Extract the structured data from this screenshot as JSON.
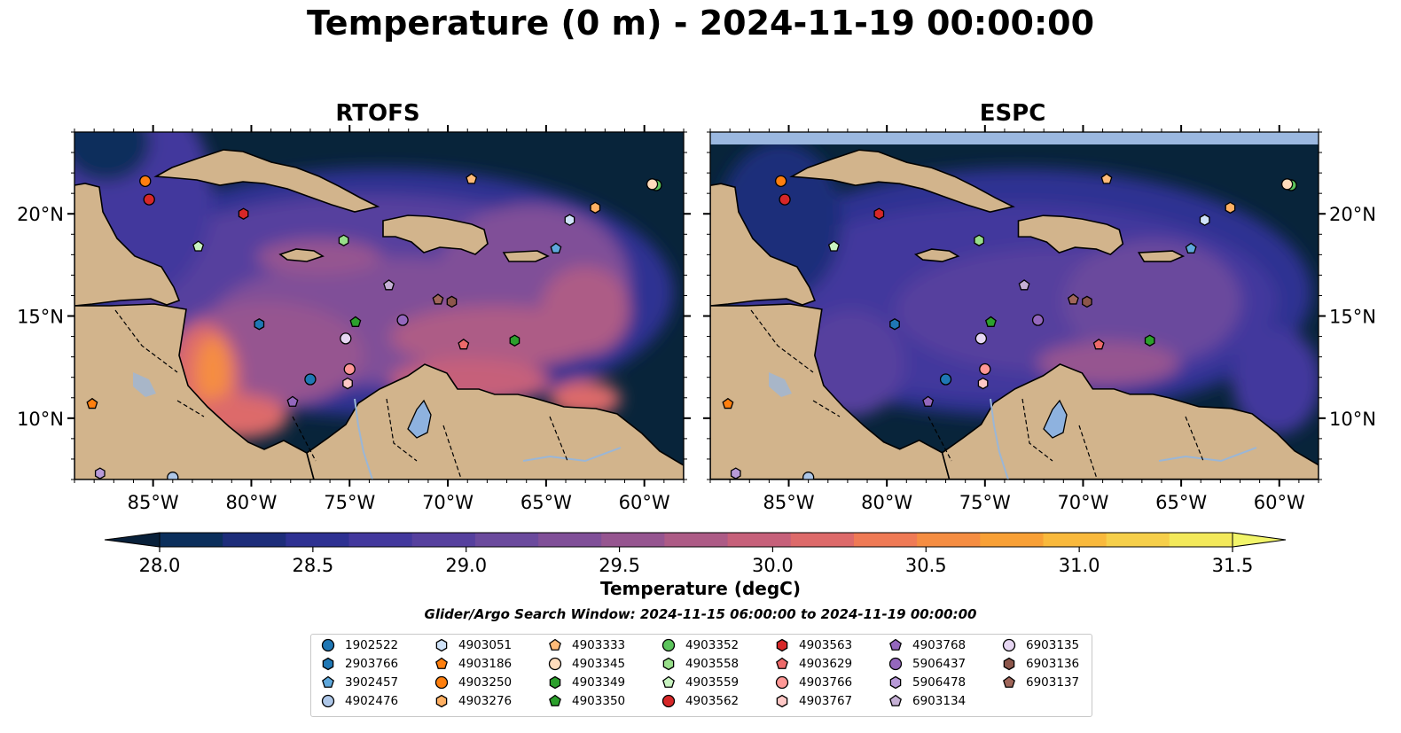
{
  "title": "Temperature (0 m) - 2024-11-19 00:00:00",
  "panels": [
    {
      "title": "RTOFS"
    },
    {
      "title": "ESPC"
    }
  ],
  "x_ticks": [
    "85°W",
    "80°W",
    "75°W",
    "70°W",
    "65°W",
    "60°W"
  ],
  "x_tick_values": [
    -85,
    -80,
    -75,
    -70,
    -65,
    -60
  ],
  "y_ticks": [
    "20°N",
    "15°N",
    "10°N"
  ],
  "y_tick_values": [
    20,
    15,
    10
  ],
  "map_extent": {
    "lon": [
      -89,
      -58
    ],
    "lat": [
      7,
      24
    ]
  },
  "colorbar": {
    "label": "Temperature (degC)",
    "ticks": [
      "28.0",
      "28.5",
      "29.0",
      "29.5",
      "30.0",
      "30.5",
      "31.0",
      "31.5"
    ],
    "range": [
      28.0,
      31.5
    ],
    "extend": "both",
    "colors": [
      "#0b2f5c",
      "#1d2d7a",
      "#2e3192",
      "#43389d",
      "#56409e",
      "#6b4a9d",
      "#804f98",
      "#965590",
      "#ad5b86",
      "#c6607a",
      "#dd6a6a",
      "#ef7a55",
      "#f58d42",
      "#f8a036",
      "#f9b93c",
      "#f6cf4a",
      "#f3e95a"
    ],
    "under_color": "#08203a",
    "over_color": "#f2f56a"
  },
  "colors": {
    "ocean_deep": "#08243a",
    "land": "#d2b48c",
    "lake": "#8eb2df",
    "river": "#9ab6d6"
  },
  "search_window": "Glider/Argo Search Window: 2024-11-15 06:00:00 to 2024-11-19 00:00:00",
  "legend": [
    {
      "id": "1902522",
      "marker": "circle",
      "color": "#1f77b4"
    },
    {
      "id": "2903766",
      "marker": "hexagon",
      "color": "#1f77b4"
    },
    {
      "id": "3902457",
      "marker": "pentagon",
      "color": "#5fa8dc"
    },
    {
      "id": "4902476",
      "marker": "circle",
      "color": "#aec7e8"
    },
    {
      "id": "4903051",
      "marker": "hexagon",
      "color": "#cfe2f8"
    },
    {
      "id": "4903186",
      "marker": "pentagon",
      "color": "#ff7f0e"
    },
    {
      "id": "4903250",
      "marker": "circle",
      "color": "#ff7f0e"
    },
    {
      "id": "4903276",
      "marker": "hexagon",
      "color": "#ffb063"
    },
    {
      "id": "4903333",
      "marker": "pentagon",
      "color": "#ffbb78"
    },
    {
      "id": "4903345",
      "marker": "circle",
      "color": "#ffdcbc"
    },
    {
      "id": "4903349",
      "marker": "hexagon",
      "color": "#2ca02c"
    },
    {
      "id": "4903350",
      "marker": "pentagon",
      "color": "#2ca02c"
    },
    {
      "id": "4903352",
      "marker": "circle",
      "color": "#5cc45c"
    },
    {
      "id": "4903558",
      "marker": "hexagon",
      "color": "#98df8a"
    },
    {
      "id": "4903559",
      "marker": "pentagon",
      "color": "#c8f3c0"
    },
    {
      "id": "4903562",
      "marker": "circle",
      "color": "#d62728"
    },
    {
      "id": "4903563",
      "marker": "hexagon",
      "color": "#d62728"
    },
    {
      "id": "4903629",
      "marker": "pentagon",
      "color": "#ee6a6a"
    },
    {
      "id": "4903766",
      "marker": "circle",
      "color": "#ff9896"
    },
    {
      "id": "4903767",
      "marker": "hexagon",
      "color": "#ffc8c6"
    },
    {
      "id": "4903768",
      "marker": "pentagon",
      "color": "#9467bd"
    },
    {
      "id": "5906437",
      "marker": "circle",
      "color": "#9467bd"
    },
    {
      "id": "5906478",
      "marker": "hexagon",
      "color": "#b89ad8"
    },
    {
      "id": "6903134",
      "marker": "pentagon",
      "color": "#c5b0d5"
    },
    {
      "id": "6903135",
      "marker": "circle",
      "color": "#e6d6f2"
    },
    {
      "id": "6903136",
      "marker": "hexagon",
      "color": "#8c564b"
    },
    {
      "id": "6903137",
      "marker": "pentagon",
      "color": "#a0665a"
    }
  ],
  "observations": [
    {
      "id": "4903250",
      "lon": -85.4,
      "lat": 21.6
    },
    {
      "id": "4903562",
      "lon": -85.2,
      "lat": 20.7
    },
    {
      "id": "4903563",
      "lon": -80.4,
      "lat": 20.0
    },
    {
      "id": "4903559",
      "lon": -82.7,
      "lat": 18.4
    },
    {
      "id": "4903558",
      "lon": -75.3,
      "lat": 18.7
    },
    {
      "id": "4903333",
      "lon": -68.8,
      "lat": 21.7
    },
    {
      "id": "4903276",
      "lon": -62.5,
      "lat": 20.3
    },
    {
      "id": "4903051",
      "lon": -63.8,
      "lat": 19.7
    },
    {
      "id": "4903352",
      "lon": -59.4,
      "lat": 21.4
    },
    {
      "id": "4903345",
      "lon": -59.6,
      "lat": 21.45
    },
    {
      "id": "3902457",
      "lon": -64.5,
      "lat": 18.3
    },
    {
      "id": "2903766",
      "lon": -79.6,
      "lat": 14.6
    },
    {
      "id": "4903350",
      "lon": -74.7,
      "lat": 14.7
    },
    {
      "id": "6903134",
      "lon": -73.0,
      "lat": 16.5
    },
    {
      "id": "6903135",
      "lon": -75.2,
      "lat": 13.9
    },
    {
      "id": "5906437",
      "lon": -72.3,
      "lat": 14.8
    },
    {
      "id": "6903137",
      "lon": -70.5,
      "lat": 15.8
    },
    {
      "id": "6903136",
      "lon": -69.8,
      "lat": 15.7
    },
    {
      "id": "4903629",
      "lon": -69.2,
      "lat": 13.6
    },
    {
      "id": "4903349",
      "lon": -66.6,
      "lat": 13.8
    },
    {
      "id": "4903766",
      "lon": -75.0,
      "lat": 12.4
    },
    {
      "id": "4903767",
      "lon": -75.1,
      "lat": 11.7
    },
    {
      "id": "1902522",
      "lon": -77.0,
      "lat": 11.9
    },
    {
      "id": "4903768",
      "lon": -77.9,
      "lat": 10.8
    },
    {
      "id": "4903186",
      "lon": -88.1,
      "lat": 10.7
    },
    {
      "id": "5906478",
      "lon": -87.7,
      "lat": 7.3
    },
    {
      "id": "4902476",
      "lon": -84.0,
      "lat": 7.1
    }
  ]
}
